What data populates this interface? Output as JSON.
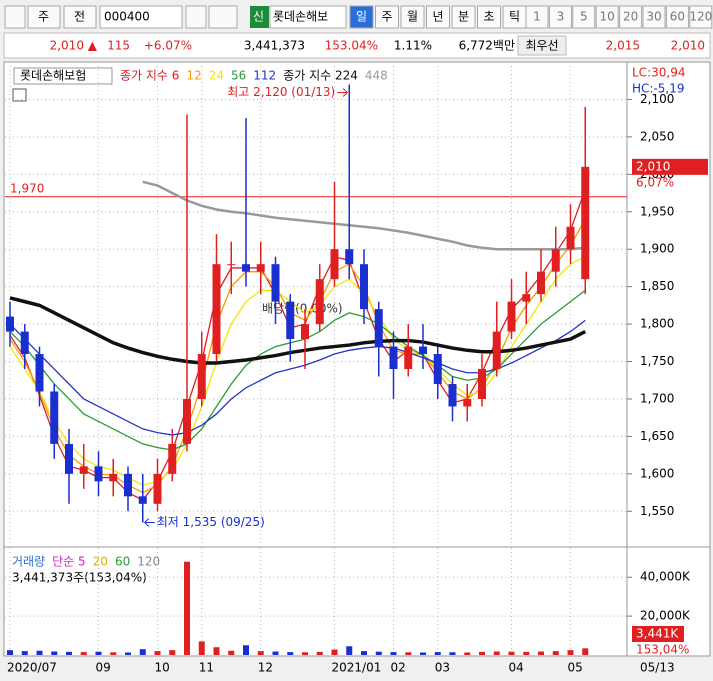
{
  "toolbar": {
    "period_prefix": "주",
    "range": "전",
    "code": "000400",
    "new": "신",
    "name": "롯데손해보",
    "periods": [
      "일",
      "주",
      "월",
      "년",
      "분",
      "초",
      "틱"
    ],
    "intervals": [
      "1",
      "3",
      "5",
      "10",
      "20",
      "30",
      "60",
      "120"
    ]
  },
  "info_bar": [
    "2,010 ▲",
    "115",
    "+6.07%",
    "3,441,373",
    "153.04%",
    "1.11%",
    "6,772백만",
    "최우선",
    "2,015",
    "2,010"
  ],
  "chart_data": [
    {
      "type": "candlestick",
      "title": "롯데손해보험",
      "up_color": "#e02020",
      "down_color": "#1a2fd0",
      "grid": true,
      "categories": [
        "2020/07",
        null,
        null,
        null,
        null,
        null,
        "09",
        null,
        null,
        null,
        "10",
        null,
        null,
        "11",
        null,
        null,
        null,
        "12",
        null,
        null,
        null,
        null,
        "2021/01",
        null,
        null,
        null,
        "02",
        null,
        null,
        "03",
        null,
        null,
        null,
        null,
        "04",
        null,
        null,
        null,
        "05",
        null
      ],
      "last_date": "05/13",
      "open": [
        1810,
        1790,
        1760,
        1710,
        1640,
        1600,
        1610,
        1590,
        1600,
        1570,
        1560,
        1600,
        1640,
        1700,
        1760,
        1880,
        1880,
        1870,
        1880,
        1830,
        1780,
        1800,
        1860,
        1900,
        1880,
        1820,
        1770,
        1740,
        1770,
        1760,
        1720,
        1690,
        1700,
        1740,
        1790,
        1830,
        1840,
        1870,
        1900,
        1860
      ],
      "high": [
        1830,
        1800,
        1770,
        1720,
        1660,
        1640,
        1630,
        1620,
        1610,
        1600,
        1620,
        1660,
        2080,
        1790,
        1920,
        1910,
        2075,
        1910,
        1890,
        1840,
        1820,
        1880,
        1990,
        2120,
        1900,
        1830,
        1790,
        1800,
        1800,
        1770,
        1730,
        1720,
        1760,
        1830,
        1860,
        1870,
        1900,
        1930,
        1960,
        2090
      ],
      "low": [
        1770,
        1740,
        1690,
        1620,
        1560,
        1580,
        1570,
        1570,
        1550,
        1535,
        1550,
        1590,
        1630,
        1690,
        1750,
        1840,
        1850,
        1840,
        1800,
        1750,
        1740,
        1790,
        1850,
        1860,
        1800,
        1730,
        1700,
        1730,
        1740,
        1700,
        1670,
        1670,
        1690,
        1730,
        1780,
        1800,
        1830,
        1850,
        1880,
        1840
      ],
      "close": [
        1790,
        1760,
        1710,
        1640,
        1600,
        1610,
        1590,
        1600,
        1570,
        1560,
        1600,
        1640,
        1700,
        1760,
        1880,
        1880,
        1870,
        1880,
        1830,
        1780,
        1800,
        1860,
        1900,
        1880,
        1820,
        1770,
        1740,
        1770,
        1760,
        1720,
        1690,
        1700,
        1740,
        1790,
        1830,
        1840,
        1870,
        1900,
        1930,
        2010
      ],
      "series": [
        {
          "name": "종가 지수 6",
          "color": "#e02020",
          "values": [
            1785,
            1755,
            1705,
            1650,
            1610,
            1605,
            1595,
            1595,
            1575,
            1565,
            1590,
            1630,
            1690,
            1750,
            1840,
            1875,
            1875,
            1875,
            1840,
            1795,
            1800,
            1850,
            1890,
            1885,
            1830,
            1780,
            1750,
            1765,
            1760,
            1725,
            1695,
            1700,
            1735,
            1780,
            1820,
            1840,
            1865,
            1895,
            1925,
            1980
          ]
        },
        {
          "name": "12",
          "color": "#ff9900",
          "values": [
            1780,
            1750,
            1710,
            1660,
            1625,
            1610,
            1600,
            1598,
            1585,
            1575,
            1585,
            1610,
            1660,
            1720,
            1800,
            1850,
            1870,
            1870,
            1850,
            1815,
            1805,
            1830,
            1870,
            1880,
            1850,
            1800,
            1765,
            1760,
            1760,
            1735,
            1710,
            1700,
            1715,
            1750,
            1795,
            1825,
            1850,
            1880,
            1905,
            1940
          ]
        },
        {
          "name": "24",
          "color": "#f2e600",
          "values": [
            1770,
            1740,
            1710,
            1670,
            1640,
            1620,
            1610,
            1605,
            1595,
            1585,
            1590,
            1605,
            1640,
            1690,
            1750,
            1800,
            1830,
            1845,
            1845,
            1830,
            1815,
            1825,
            1850,
            1860,
            1840,
            1810,
            1780,
            1765,
            1760,
            1740,
            1720,
            1705,
            1710,
            1735,
            1770,
            1800,
            1830,
            1860,
            1880,
            1890
          ]
        },
        {
          "name": "56",
          "color": "#2e9a3a",
          "values": [
            1790,
            1770,
            1745,
            1720,
            1700,
            1680,
            1670,
            1660,
            1650,
            1640,
            1635,
            1632,
            1640,
            1660,
            1690,
            1720,
            1745,
            1760,
            1770,
            1775,
            1780,
            1790,
            1805,
            1815,
            1810,
            1800,
            1785,
            1770,
            1758,
            1745,
            1730,
            1725,
            1728,
            1740,
            1760,
            1780,
            1800,
            1815,
            1830,
            1845
          ]
        },
        {
          "name": "112",
          "color": "#2233cc",
          "values": [
            1800,
            1780,
            1760,
            1740,
            1720,
            1700,
            1690,
            1680,
            1670,
            1660,
            1655,
            1652,
            1655,
            1665,
            1680,
            1700,
            1715,
            1725,
            1735,
            1740,
            1745,
            1752,
            1760,
            1765,
            1768,
            1770,
            1768,
            1762,
            1755,
            1748,
            1740,
            1735,
            1735,
            1740,
            1748,
            1758,
            1768,
            1778,
            1790,
            1805
          ]
        },
        {
          "name": "종가 지수 224",
          "color": "#111111",
          "width": 3.5,
          "values": [
            1835,
            1830,
            1825,
            1815,
            1805,
            1795,
            1785,
            1775,
            1768,
            1762,
            1757,
            1753,
            1750,
            1748,
            1748,
            1750,
            1752,
            1755,
            1758,
            1762,
            1765,
            1768,
            1770,
            1772,
            1775,
            1777,
            1778,
            1778,
            1776,
            1772,
            1768,
            1765,
            1763,
            1763,
            1765,
            1768,
            1772,
            1776,
            1780,
            1790
          ]
        },
        {
          "name": "448",
          "color": "#999999",
          "width": 2.5,
          "values": [
            null,
            null,
            null,
            null,
            null,
            null,
            null,
            null,
            null,
            1990,
            1985,
            1975,
            1965,
            1958,
            1953,
            1950,
            1948,
            1945,
            1942,
            1940,
            1938,
            1936,
            1934,
            1932,
            1930,
            1928,
            1925,
            1922,
            1918,
            1914,
            1910,
            1905,
            1902,
            1900,
            1900,
            1900,
            1900,
            1900,
            1900,
            1902
          ]
        }
      ],
      "ylim": [
        1505,
        2150
      ],
      "yticks": [
        {
          "value": 1550,
          "label": "1,550"
        },
        {
          "value": 1600,
          "label": "1,600"
        },
        {
          "value": 1650,
          "label": "1,650"
        },
        {
          "value": 1700,
          "label": "1,700"
        },
        {
          "value": 1750,
          "label": "1,750"
        },
        {
          "value": 1800,
          "label": "1,800"
        },
        {
          "value": 1850,
          "label": "1,850"
        },
        {
          "value": 1900,
          "label": "1,900"
        },
        {
          "value": 1950,
          "label": "1,950"
        },
        {
          "value": 2000,
          "label": "2,000"
        },
        {
          "value": 2050,
          "label": "2,050"
        },
        {
          "value": 2100,
          "label": "2,100"
        }
      ],
      "hline": {
        "value": 1970,
        "label": "1,970"
      },
      "last_label": {
        "value": 2010,
        "label": "2,010"
      },
      "last_change": "6,07%",
      "lc": "LC:30,94",
      "hc": "HC:-5,19",
      "high_label": "최고 2,120 (01/13)",
      "low_label": "최저 1,535 (09/25)",
      "event_label": "배당락(0,00%)"
    },
    {
      "type": "bar",
      "legend": [
        {
          "name": "거래량",
          "color": "#2a6fd8"
        },
        {
          "name": "단순 5",
          "color": "#d020c0"
        },
        {
          "name": "20",
          "color": "#e0b000"
        },
        {
          "name": "60",
          "color": "#2e9a3a"
        },
        {
          "name": "120",
          "color": "#888888"
        }
      ],
      "summary": "3,441,373주(153,04%)",
      "values": [
        2500,
        2000,
        2200,
        1800,
        1600,
        1500,
        1700,
        1400,
        1300,
        3000,
        2000,
        2500,
        48000,
        7000,
        4000,
        2200,
        5000,
        2000,
        1800,
        1500,
        1400,
        1600,
        2800,
        4500,
        2000,
        1700,
        1500,
        1400,
        1300,
        1500,
        1400,
        1300,
        1600,
        1800,
        1700,
        1600,
        1800,
        2000,
        2500,
        3441
      ],
      "ylim": [
        0,
        54000
      ],
      "yticks": [
        {
          "value": 20000,
          "label": "20,000K"
        },
        {
          "value": 40000,
          "label": "40,000K"
        }
      ],
      "last_label": {
        "value": 3441,
        "label": "3,441K"
      },
      "last_change": "153,04%"
    }
  ]
}
